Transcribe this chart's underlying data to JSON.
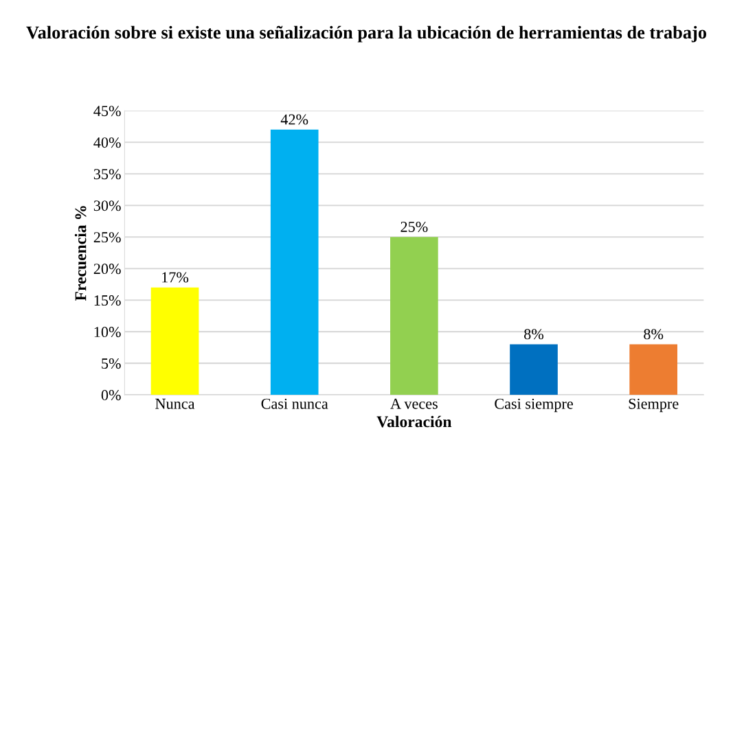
{
  "chart_data": {
    "type": "bar",
    "title": "Valoración sobre si existe una señalización para la ubicación de herramientas de trabajo",
    "xlabel": "Valoración",
    "ylabel": "Frecuencia %",
    "categories": [
      "Nunca",
      "Casi nunca",
      "A veces",
      "Casi siempre",
      "Siempre"
    ],
    "values": [
      17,
      42,
      25,
      8,
      8
    ],
    "colors": [
      "#ffff00",
      "#00b0f0",
      "#92d050",
      "#0070c0",
      "#ed7d31"
    ],
    "value_labels": [
      "17%",
      "42%",
      "25%",
      "8%",
      "8%"
    ],
    "ylim": [
      0,
      45
    ],
    "yticks": [
      {
        "value": 0,
        "label": "0%"
      },
      {
        "value": 5,
        "label": "5%"
      },
      {
        "value": 10,
        "label": "10%"
      },
      {
        "value": 15,
        "label": "15%"
      },
      {
        "value": 20,
        "label": "20%"
      },
      {
        "value": 25,
        "label": "25%"
      },
      {
        "value": 30,
        "label": "30%"
      },
      {
        "value": 35,
        "label": "35%"
      },
      {
        "value": 40,
        "label": "40%"
      },
      {
        "value": 45,
        "label": "45%"
      }
    ],
    "grid": "y"
  }
}
